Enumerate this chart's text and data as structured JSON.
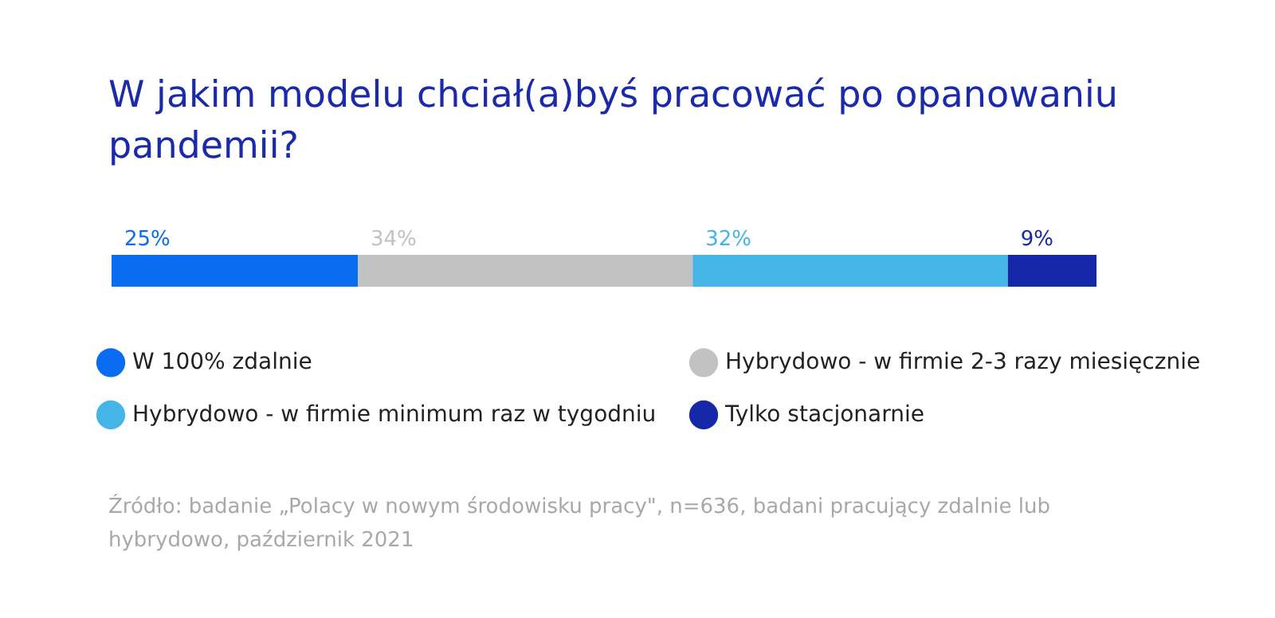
{
  "chart_data": {
    "type": "bar",
    "orientation": "horizontal",
    "stacked": true,
    "title": "W jakim modelu chciał(a)byś pracować po opanowaniu pandemii?",
    "categories": [
      null
    ],
    "series": [
      {
        "name": "W 100% zdalnie",
        "color": "#0a6cf0",
        "values": [
          25
        ],
        "value_labels": [
          "25%"
        ]
      },
      {
        "name": "Hybrydowo - w firmie 2-3 razy miesięcznie",
        "color": "#c2c2c2",
        "values": [
          34
        ],
        "value_labels": [
          "34%"
        ]
      },
      {
        "name": "Hybrydowo - w firmie minimum raz w tygodniu",
        "color": "#45b5e8",
        "values": [
          32
        ],
        "value_labels": [
          "32%"
        ]
      },
      {
        "name": "Tylko stacjonarnie",
        "color": "#1428a8",
        "values": [
          9
        ],
        "value_labels": [
          "9%"
        ]
      }
    ],
    "legend": "bottom",
    "annotations": [
      "Źródło: badanie „Polacy w nowym środowisku pracy\", n=636, badani pracujący zdalnie lub hybrydowo, październik 2021"
    ]
  }
}
